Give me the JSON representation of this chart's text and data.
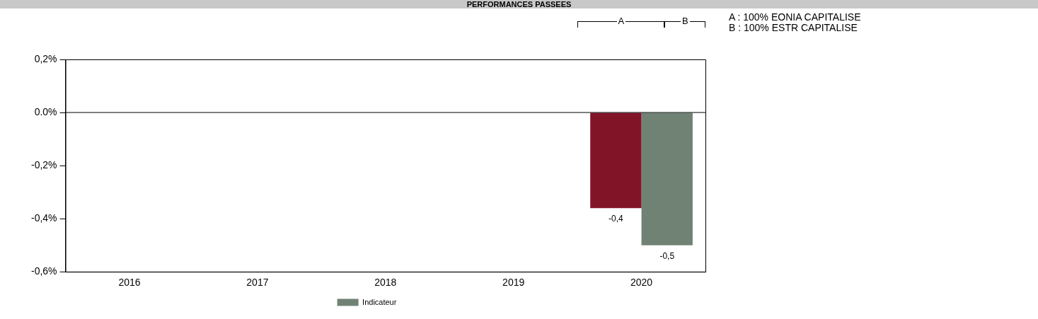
{
  "chart_data": {
    "type": "bar",
    "title": "PERFORMANCES PASSEES",
    "categories": [
      "2016",
      "2017",
      "2018",
      "2019",
      "2020"
    ],
    "series": [
      {
        "color": "#821428",
        "values": [
          null,
          null,
          null,
          null,
          -0.36
        ],
        "value_labels": [
          null,
          null,
          null,
          null,
          "-0,4"
        ]
      },
      {
        "name": "Indicateur",
        "color": "#708274",
        "values": [
          null,
          null,
          null,
          null,
          -0.5
        ],
        "value_labels": [
          null,
          null,
          null,
          null,
          "-0,5"
        ]
      }
    ],
    "ylim": [
      -0.6,
      0.2
    ],
    "yticks": [
      {
        "value": -0.6,
        "label": "-0,6%"
      },
      {
        "value": -0.4,
        "label": "-0,4%"
      },
      {
        "value": -0.2,
        "label": "-0,2%"
      },
      {
        "value": 0,
        "label": "0.0%"
      },
      {
        "value": 0.2,
        "label": "0,2%"
      }
    ],
    "ref_lines": [
      {
        "axis": "y",
        "value": 0,
        "color": "#000000"
      }
    ],
    "annotations": [
      "A",
      "B",
      "A : 100% EONIA CAPITALISE",
      "B : 100% ESTR CAPITALISE"
    ],
    "grid": false,
    "legend": "bottom"
  }
}
